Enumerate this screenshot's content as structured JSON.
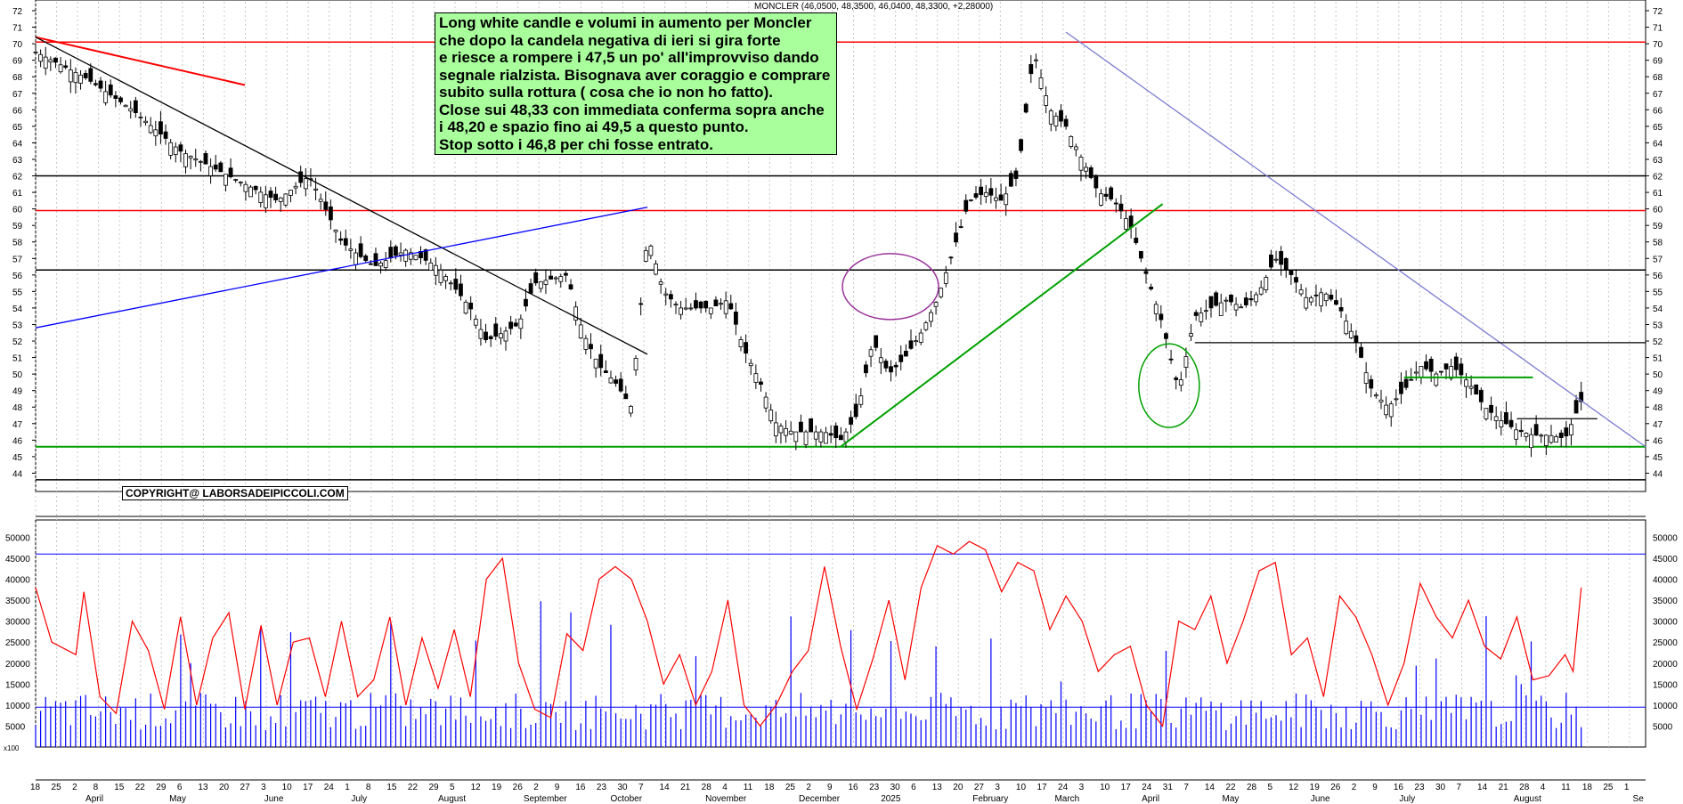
{
  "chart_data": [
    {
      "type": "candlestick",
      "title": "MONCLER (46,0500, 48,3500, 46,0400, 48,3300, +2,28000)",
      "ylim": [
        43,
        72
      ],
      "y_ticks": [
        44,
        45,
        46,
        47,
        48,
        49,
        50,
        51,
        52,
        53,
        54,
        55,
        56,
        57,
        58,
        59,
        60,
        61,
        62,
        63,
        64,
        65,
        66,
        67,
        68,
        69,
        70,
        71,
        72
      ],
      "grid": true,
      "horizontal_levels": [
        {
          "value": 70.1,
          "color": "#ff0000"
        },
        {
          "value": 62.0,
          "color": "#000000"
        },
        {
          "value": 59.9,
          "color": "#ff0000"
        },
        {
          "value": 56.3,
          "color": "#000000"
        },
        {
          "value": 45.6,
          "color": "#00a000"
        },
        {
          "value": 43.6,
          "color": "#000000"
        }
      ],
      "segments": [
        {
          "from": [
            0.0,
            70.4
          ],
          "to": [
            0.13,
            67.5
          ],
          "color": "#ff0000"
        },
        {
          "from": [
            0.0,
            70.4
          ],
          "to": [
            0.38,
            51.2
          ],
          "color": "#000000"
        },
        {
          "from": [
            0.0,
            52.8
          ],
          "to": [
            0.38,
            60.1
          ],
          "color": "#0000ff"
        },
        {
          "from": [
            0.5,
            45.6
          ],
          "to": [
            0.7,
            60.3
          ],
          "color": "#00a000"
        },
        {
          "from": [
            0.64,
            70.7
          ],
          "to": [
            1.0,
            45.6
          ],
          "color": "#7b7bd0"
        },
        {
          "from": [
            0.72,
            51.9
          ],
          "to": [
            1.0,
            51.9
          ],
          "color": "#000000"
        },
        {
          "from": [
            0.85,
            49.8
          ],
          "to": [
            0.93,
            49.8
          ],
          "color": "#00a000"
        },
        {
          "from": [
            0.92,
            47.3
          ],
          "to": [
            0.97,
            47.3
          ],
          "color": "#000000"
        }
      ],
      "annotations": {
        "note_lines": [
          "Long white candle e volumi in aumento per Moncler",
          "che dopo la candela negativa di ieri si gira forte",
          "e riesce a rompere i 47,5 un po' all'improvviso dando",
          "segnale rialzista. Bisognava aver coraggio e comprare",
          "subito sulla rottura ( cosa che io non ho fatto).",
          "Close sui 48,33  con immediata conferma sopra anche",
          "i 48,20 e spazio fino ai 49,5 a questo punto.",
          "Stop sotto i 46,8 per chi fosse entrato."
        ],
        "copyright": "COPYRIGHT@ LABORSADEIPICCOLI.COM"
      },
      "price_path": [
        [
          0.0,
          69.5
        ],
        [
          0.03,
          68
        ],
        [
          0.06,
          66
        ],
        [
          0.09,
          63.5
        ],
        [
          0.12,
          62
        ],
        [
          0.15,
          60.5
        ],
        [
          0.17,
          62
        ],
        [
          0.19,
          58
        ],
        [
          0.21,
          56.5
        ],
        [
          0.23,
          57.5
        ],
        [
          0.25,
          56.5
        ],
        [
          0.27,
          54
        ],
        [
          0.28,
          52
        ],
        [
          0.3,
          53
        ],
        [
          0.31,
          55.5
        ],
        [
          0.33,
          56
        ],
        [
          0.34,
          52.5
        ],
        [
          0.35,
          50.5
        ],
        [
          0.36,
          49.5
        ],
        [
          0.37,
          48
        ],
        [
          0.38,
          58.5
        ],
        [
          0.39,
          55
        ],
        [
          0.4,
          54
        ],
        [
          0.42,
          54
        ],
        [
          0.43,
          54.5
        ],
        [
          0.44,
          51.5
        ],
        [
          0.45,
          49.5
        ],
        [
          0.46,
          47
        ],
        [
          0.47,
          46.5
        ],
        [
          0.48,
          46.5
        ],
        [
          0.49,
          46.5
        ],
        [
          0.5,
          46
        ],
        [
          0.51,
          47.5
        ],
        [
          0.52,
          52
        ],
        [
          0.53,
          50
        ],
        [
          0.54,
          51
        ],
        [
          0.55,
          52.5
        ],
        [
          0.56,
          54.5
        ],
        [
          0.57,
          57.5
        ],
        [
          0.58,
          60.5
        ],
        [
          0.59,
          61
        ],
        [
          0.6,
          60.5
        ],
        [
          0.61,
          62
        ],
        [
          0.62,
          69.5
        ],
        [
          0.63,
          66
        ],
        [
          0.64,
          65
        ],
        [
          0.65,
          63
        ],
        [
          0.66,
          61
        ],
        [
          0.67,
          60.5
        ],
        [
          0.68,
          59
        ],
        [
          0.69,
          56
        ],
        [
          0.7,
          53
        ],
        [
          0.71,
          49
        ],
        [
          0.72,
          53.5
        ],
        [
          0.73,
          54
        ],
        [
          0.74,
          54.5
        ],
        [
          0.75,
          54
        ],
        [
          0.76,
          55
        ],
        [
          0.77,
          57
        ],
        [
          0.78,
          56
        ],
        [
          0.79,
          54.5
        ],
        [
          0.8,
          55
        ],
        [
          0.81,
          54
        ],
        [
          0.82,
          52
        ],
        [
          0.83,
          49
        ],
        [
          0.84,
          48
        ],
        [
          0.85,
          49
        ],
        [
          0.86,
          50.5
        ],
        [
          0.87,
          50
        ],
        [
          0.88,
          50.5
        ],
        [
          0.89,
          49.5
        ],
        [
          0.9,
          48
        ],
        [
          0.91,
          47.2
        ],
        [
          0.92,
          46.6
        ],
        [
          0.93,
          46.3
        ],
        [
          0.94,
          46.3
        ],
        [
          0.95,
          46.1
        ],
        [
          0.96,
          48.33
        ]
      ]
    },
    {
      "type": "bar+line",
      "ylim": [
        0,
        52000
      ],
      "y_ticks": [
        5000,
        10000,
        15000,
        20000,
        25000,
        30000,
        35000,
        40000,
        45000,
        50000
      ],
      "y_unit_label": "x100",
      "horizontal_levels": [
        {
          "value": 46000,
          "color": "#0000ff"
        },
        {
          "value": 9500,
          "color": "#0000ff"
        }
      ],
      "bar_color": "#0000ff",
      "line_color": "#ff0000",
      "oscillator_path": [
        [
          0.0,
          38000
        ],
        [
          0.01,
          25000
        ],
        [
          0.025,
          22000
        ],
        [
          0.03,
          37000
        ],
        [
          0.04,
          12000
        ],
        [
          0.05,
          8000
        ],
        [
          0.06,
          30000
        ],
        [
          0.07,
          23000
        ],
        [
          0.08,
          9000
        ],
        [
          0.09,
          31000
        ],
        [
          0.1,
          10000
        ],
        [
          0.11,
          26000
        ],
        [
          0.12,
          32000
        ],
        [
          0.13,
          9000
        ],
        [
          0.14,
          29000
        ],
        [
          0.15,
          10000
        ],
        [
          0.16,
          25000
        ],
        [
          0.17,
          26000
        ],
        [
          0.18,
          12000
        ],
        [
          0.19,
          30000
        ],
        [
          0.2,
          12000
        ],
        [
          0.21,
          16000
        ],
        [
          0.22,
          31000
        ],
        [
          0.23,
          10000
        ],
        [
          0.24,
          26000
        ],
        [
          0.25,
          14000
        ],
        [
          0.26,
          28000
        ],
        [
          0.27,
          12000
        ],
        [
          0.28,
          40000
        ],
        [
          0.29,
          45000
        ],
        [
          0.3,
          20000
        ],
        [
          0.31,
          9000
        ],
        [
          0.32,
          7000
        ],
        [
          0.33,
          27000
        ],
        [
          0.34,
          23000
        ],
        [
          0.35,
          40000
        ],
        [
          0.36,
          43000
        ],
        [
          0.37,
          40000
        ],
        [
          0.38,
          30000
        ],
        [
          0.39,
          15000
        ],
        [
          0.4,
          22000
        ],
        [
          0.41,
          10000
        ],
        [
          0.42,
          18000
        ],
        [
          0.43,
          35000
        ],
        [
          0.44,
          10000
        ],
        [
          0.45,
          5000
        ],
        [
          0.46,
          10000
        ],
        [
          0.47,
          18000
        ],
        [
          0.48,
          23000
        ],
        [
          0.49,
          43000
        ],
        [
          0.5,
          24000
        ],
        [
          0.51,
          9000
        ],
        [
          0.52,
          21000
        ],
        [
          0.53,
          35000
        ],
        [
          0.54,
          16000
        ],
        [
          0.55,
          38000
        ],
        [
          0.56,
          48000
        ],
        [
          0.57,
          46000
        ],
        [
          0.58,
          49000
        ],
        [
          0.59,
          47000
        ],
        [
          0.6,
          37000
        ],
        [
          0.61,
          44000
        ],
        [
          0.62,
          42000
        ],
        [
          0.63,
          28000
        ],
        [
          0.64,
          36000
        ],
        [
          0.65,
          30000
        ],
        [
          0.66,
          18000
        ],
        [
          0.67,
          22000
        ],
        [
          0.68,
          24000
        ],
        [
          0.69,
          10000
        ],
        [
          0.7,
          5000
        ],
        [
          0.71,
          30000
        ],
        [
          0.72,
          28000
        ],
        [
          0.73,
          36000
        ],
        [
          0.74,
          20000
        ],
        [
          0.75,
          30000
        ],
        [
          0.76,
          42000
        ],
        [
          0.77,
          44000
        ],
        [
          0.78,
          22000
        ],
        [
          0.79,
          26000
        ],
        [
          0.8,
          12000
        ],
        [
          0.81,
          36000
        ],
        [
          0.82,
          31000
        ],
        [
          0.83,
          22000
        ],
        [
          0.84,
          10000
        ],
        [
          0.85,
          20000
        ],
        [
          0.86,
          39000
        ],
        [
          0.87,
          31000
        ],
        [
          0.88,
          26000
        ],
        [
          0.89,
          35000
        ],
        [
          0.9,
          24000
        ],
        [
          0.91,
          21000
        ],
        [
          0.92,
          31000
        ],
        [
          0.93,
          16000
        ],
        [
          0.94,
          17000
        ],
        [
          0.95,
          22000
        ],
        [
          0.955,
          18000
        ],
        [
          0.96,
          38000
        ]
      ]
    }
  ],
  "x_axis": {
    "day_labels": [
      "18",
      "25",
      "2",
      "8",
      "15",
      "22",
      "29",
      "6",
      "13",
      "20",
      "27",
      "3",
      "10",
      "17",
      "24",
      "1",
      "8",
      "15",
      "22",
      "29",
      "5",
      "12",
      "19",
      "26",
      "2",
      "9",
      "16",
      "23",
      "30",
      "7",
      "14",
      "21",
      "28",
      "4",
      "11",
      "18",
      "25",
      "2",
      "9",
      "16",
      "23",
      "30",
      "6",
      "13",
      "20",
      "27",
      "3",
      "10",
      "17",
      "24",
      "3",
      "10",
      "17",
      "24",
      "31",
      "7",
      "14",
      "22",
      "28",
      "5",
      "12",
      "19",
      "26",
      "2",
      "9",
      "16",
      "23",
      "30",
      "7",
      "14",
      "21",
      "28",
      "4",
      "11",
      "18",
      "25",
      "1"
    ],
    "month_labels": [
      {
        "label": "April",
        "at": 0.031
      },
      {
        "label": "May",
        "at": 0.083
      },
      {
        "label": "June",
        "at": 0.142
      },
      {
        "label": "July",
        "at": 0.196
      },
      {
        "label": "August",
        "at": 0.25
      },
      {
        "label": "September",
        "at": 0.303
      },
      {
        "label": "October",
        "at": 0.357
      },
      {
        "label": "November",
        "at": 0.416
      },
      {
        "label": "December",
        "at": 0.474
      },
      {
        "label": "2025",
        "at": 0.525
      },
      {
        "label": "February",
        "at": 0.582
      },
      {
        "label": "March",
        "at": 0.633
      },
      {
        "label": "April",
        "at": 0.687
      },
      {
        "label": "May",
        "at": 0.737
      },
      {
        "label": "June",
        "at": 0.792
      },
      {
        "label": "July",
        "at": 0.847
      },
      {
        "label": "August",
        "at": 0.918
      },
      {
        "label": "Se",
        "at": 0.992
      }
    ]
  }
}
